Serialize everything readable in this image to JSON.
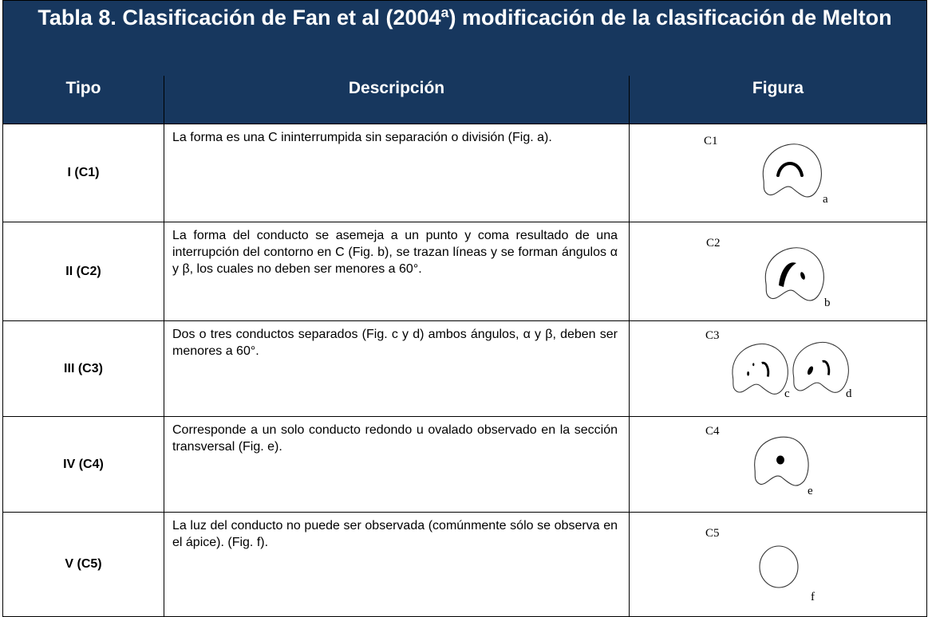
{
  "table": {
    "title": "Tabla 8. Clasificación de Fan et al (2004ª) modificación de la clasificación de Melton",
    "headers": [
      "Tipo",
      "Descripción",
      "Figura"
    ],
    "rows": [
      {
        "tipo": "I (C1)",
        "descripcion": "La forma es una C ininterrumpida sin separación o división (Fig. a).",
        "figure": {
          "label": "C1",
          "letters": [
            "a"
          ]
        }
      },
      {
        "tipo": "II (C2)",
        "descripcion": "La forma del conducto se asemeja a un punto y coma resultado de una interrupción del contorno en C (Fig. b), se trazan líneas y se forman ángulos α y β, los cuales no deben ser menores a 60°.",
        "figure": {
          "label": "C2",
          "letters": [
            "b"
          ]
        }
      },
      {
        "tipo": "III (C3)",
        "descripcion": "Dos o tres conductos separados (Fig. c y d) ambos ángulos, α y β, deben ser menores a 60°.",
        "figure": {
          "label": "C3",
          "letters": [
            "c",
            "d"
          ]
        }
      },
      {
        "tipo": "IV (C4)",
        "descripcion": "Corresponde a un solo conducto redondo u ovalado observado en la sección transversal (Fig. e).",
        "figure": {
          "label": "C4",
          "letters": [
            "e"
          ]
        }
      },
      {
        "tipo": "V (C5)",
        "descripcion": "La luz del conducto no puede ser observada (comúnmente sólo se observa en el ápice). (Fig. f).",
        "figure": {
          "label": "C5",
          "letters": [
            "f"
          ]
        }
      }
    ]
  }
}
